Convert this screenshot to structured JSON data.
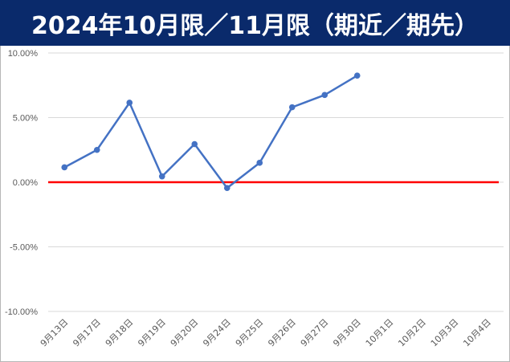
{
  "title": "2024年10月限／11月限（期近／期先）",
  "chart_data": {
    "type": "line",
    "title": "2024年10月限／11月限（期近／期先）",
    "categories": [
      "9月13日",
      "9月17日",
      "9月18日",
      "9月19日",
      "9月20日",
      "9月24日",
      "9月25日",
      "9月26日",
      "9月27日",
      "9月30日",
      "10月1日",
      "10月2日",
      "10月3日",
      "10月4日"
    ],
    "y_ticks": [
      "10.00%",
      "5.00%",
      "0.00%",
      "-5.00%",
      "-10.00%"
    ],
    "ylim": [
      -10,
      10
    ],
    "y_unit": "%",
    "grid": true,
    "series": [
      {
        "color": "#4472c4",
        "values": [
          1.15,
          2.5,
          6.15,
          0.45,
          2.95,
          -0.45,
          1.5,
          5.8,
          6.75,
          8.25,
          null,
          null,
          null,
          null
        ]
      }
    ],
    "reference_line": {
      "y": 0,
      "color": "#ff0000"
    }
  }
}
